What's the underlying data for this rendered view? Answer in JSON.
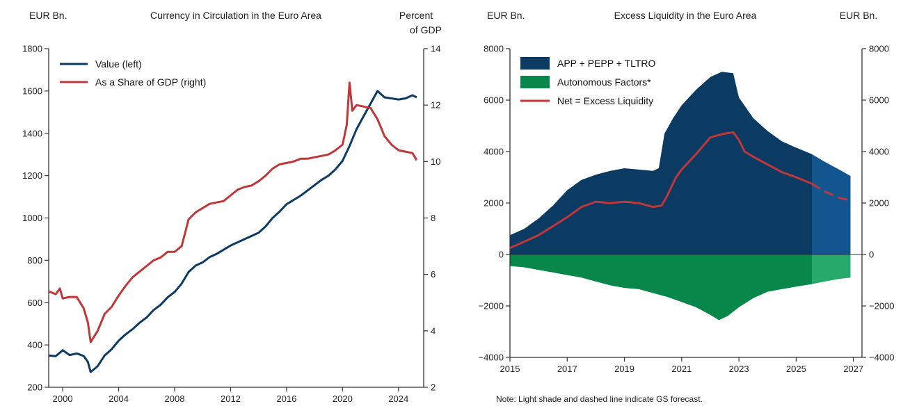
{
  "colors": {
    "navy": "#0b3a63",
    "red": "#c0373a",
    "green": "#07874a",
    "navy_forecast": "#13568f",
    "green_forecast": "#26a96b",
    "axis": "#333333"
  },
  "chart_data": [
    {
      "type": "line",
      "title": "Currency in Circulation in the Euro Area",
      "ylabel_left": "EUR Bn.",
      "ylabel_right_line1": "Percent",
      "ylabel_right_line2": "of GDP",
      "xlim": [
        1999,
        2025.8
      ],
      "ylim_left": [
        200,
        1800
      ],
      "ylim_right": [
        2,
        14
      ],
      "x_ticks": [
        2000,
        2004,
        2008,
        2012,
        2016,
        2020,
        2024
      ],
      "x_tick_labels": [
        "2000",
        "2004",
        "2008",
        "2012",
        "2016",
        "2020",
        "2024"
      ],
      "y_left_ticks": [
        200,
        400,
        600,
        800,
        1000,
        1200,
        1400,
        1600,
        1800
      ],
      "y_left_tick_labels": [
        "200",
        "400",
        "600",
        "800",
        "1000",
        "1200",
        "1400",
        "1600",
        "1800"
      ],
      "y_right_ticks": [
        2,
        4,
        6,
        8,
        10,
        12,
        14
      ],
      "y_right_tick_labels": [
        "2",
        "4",
        "6",
        "8",
        "10",
        "12",
        "14"
      ],
      "legend_position": "top-left",
      "series": [
        {
          "name": "Value (left)",
          "axis": "left",
          "color": "#0b3a63",
          "points": [
            [
              1999.0,
              350
            ],
            [
              1999.5,
              347
            ],
            [
              2000.0,
              375
            ],
            [
              2000.5,
              352
            ],
            [
              2001.0,
              360
            ],
            [
              2001.5,
              348
            ],
            [
              2001.8,
              320
            ],
            [
              2002.0,
              272
            ],
            [
              2002.5,
              300
            ],
            [
              2003.0,
              350
            ],
            [
              2003.5,
              380
            ],
            [
              2004.0,
              420
            ],
            [
              2004.5,
              450
            ],
            [
              2005.0,
              475
            ],
            [
              2005.5,
              505
            ],
            [
              2006.0,
              530
            ],
            [
              2006.5,
              565
            ],
            [
              2007.0,
              590
            ],
            [
              2007.5,
              625
            ],
            [
              2008.0,
              650
            ],
            [
              2008.5,
              690
            ],
            [
              2009.0,
              745
            ],
            [
              2009.5,
              775
            ],
            [
              2010.0,
              790
            ],
            [
              2010.5,
              815
            ],
            [
              2011.0,
              830
            ],
            [
              2011.5,
              850
            ],
            [
              2012.0,
              870
            ],
            [
              2012.5,
              885
            ],
            [
              2013.0,
              900
            ],
            [
              2013.5,
              915
            ],
            [
              2014.0,
              930
            ],
            [
              2014.5,
              960
            ],
            [
              2015.0,
              1000
            ],
            [
              2015.5,
              1030
            ],
            [
              2016.0,
              1065
            ],
            [
              2016.5,
              1085
            ],
            [
              2017.0,
              1105
            ],
            [
              2017.5,
              1130
            ],
            [
              2018.0,
              1155
            ],
            [
              2018.5,
              1180
            ],
            [
              2019.0,
              1200
            ],
            [
              2019.5,
              1230
            ],
            [
              2020.0,
              1270
            ],
            [
              2020.5,
              1340
            ],
            [
              2021.0,
              1420
            ],
            [
              2021.5,
              1480
            ],
            [
              2022.0,
              1540
            ],
            [
              2022.5,
              1600
            ],
            [
              2023.0,
              1570
            ],
            [
              2023.5,
              1565
            ],
            [
              2024.0,
              1560
            ],
            [
              2024.5,
              1565
            ],
            [
              2025.0,
              1580
            ],
            [
              2025.3,
              1570
            ]
          ]
        },
        {
          "name": "As a Share of GDP (right)",
          "axis": "right",
          "color": "#c0373a",
          "points": [
            [
              1999.0,
              5.4
            ],
            [
              1999.5,
              5.3
            ],
            [
              1999.8,
              5.5
            ],
            [
              2000.0,
              5.15
            ],
            [
              2000.5,
              5.2
            ],
            [
              2001.0,
              5.2
            ],
            [
              2001.5,
              4.8
            ],
            [
              2001.8,
              4.3
            ],
            [
              2002.0,
              3.6
            ],
            [
              2002.5,
              4.0
            ],
            [
              2003.0,
              4.6
            ],
            [
              2003.5,
              4.85
            ],
            [
              2004.0,
              5.25
            ],
            [
              2004.5,
              5.6
            ],
            [
              2005.0,
              5.9
            ],
            [
              2005.5,
              6.1
            ],
            [
              2006.0,
              6.3
            ],
            [
              2006.5,
              6.5
            ],
            [
              2007.0,
              6.6
            ],
            [
              2007.5,
              6.8
            ],
            [
              2008.0,
              6.8
            ],
            [
              2008.5,
              7.0
            ],
            [
              2009.0,
              7.95
            ],
            [
              2009.5,
              8.2
            ],
            [
              2010.0,
              8.35
            ],
            [
              2010.5,
              8.5
            ],
            [
              2011.0,
              8.55
            ],
            [
              2011.5,
              8.6
            ],
            [
              2012.0,
              8.8
            ],
            [
              2012.5,
              9.0
            ],
            [
              2013.0,
              9.1
            ],
            [
              2013.5,
              9.15
            ],
            [
              2014.0,
              9.3
            ],
            [
              2014.5,
              9.5
            ],
            [
              2015.0,
              9.75
            ],
            [
              2015.5,
              9.9
            ],
            [
              2016.0,
              9.95
            ],
            [
              2016.5,
              10.0
            ],
            [
              2017.0,
              10.1
            ],
            [
              2017.5,
              10.1
            ],
            [
              2018.0,
              10.15
            ],
            [
              2018.5,
              10.2
            ],
            [
              2019.0,
              10.25
            ],
            [
              2019.5,
              10.4
            ],
            [
              2020.0,
              10.6
            ],
            [
              2020.3,
              11.3
            ],
            [
              2020.5,
              12.8
            ],
            [
              2020.7,
              11.8
            ],
            [
              2021.0,
              12.0
            ],
            [
              2021.5,
              11.95
            ],
            [
              2022.0,
              11.9
            ],
            [
              2022.5,
              11.5
            ],
            [
              2023.0,
              10.9
            ],
            [
              2023.5,
              10.6
            ],
            [
              2024.0,
              10.4
            ],
            [
              2024.5,
              10.35
            ],
            [
              2025.0,
              10.3
            ],
            [
              2025.3,
              10.05
            ]
          ]
        }
      ]
    },
    {
      "type": "area",
      "title": "Excess Liquidity in the Euro Area",
      "ylabel_left": "EUR Bn.",
      "ylabel_right": "EUR Bn.",
      "xlim": [
        2015,
        2027.3
      ],
      "ylim": [
        -4000,
        8000
      ],
      "x_ticks": [
        2015,
        2017,
        2019,
        2021,
        2023,
        2025,
        2027
      ],
      "x_tick_labels": [
        "2015",
        "2017",
        "2019",
        "2021",
        "2023",
        "2025",
        "2027"
      ],
      "y_ticks": [
        -4000,
        -2000,
        0,
        2000,
        4000,
        6000,
        8000
      ],
      "y_tick_labels": [
        "−4000",
        "−2000",
        "0",
        "2000",
        "4000",
        "6000",
        "8000"
      ],
      "legend_position": "top-left",
      "forecast_start": 2025.55,
      "note": "Note: Light shade and dashed line indicate GS forecast.",
      "series": [
        {
          "name": "APP + PEPP + TLTRO",
          "kind": "area",
          "color": "#0b3a63",
          "forecast_color": "#13568f",
          "points": [
            [
              2015.0,
              750
            ],
            [
              2015.5,
              1000
            ],
            [
              2016.0,
              1400
            ],
            [
              2016.5,
              1900
            ],
            [
              2017.0,
              2500
            ],
            [
              2017.5,
              2900
            ],
            [
              2018.0,
              3100
            ],
            [
              2018.5,
              3250
            ],
            [
              2019.0,
              3350
            ],
            [
              2019.5,
              3300
            ],
            [
              2020.0,
              3250
            ],
            [
              2020.2,
              3350
            ],
            [
              2020.4,
              4700
            ],
            [
              2020.7,
              5300
            ],
            [
              2021.0,
              5800
            ],
            [
              2021.5,
              6400
            ],
            [
              2022.0,
              6900
            ],
            [
              2022.4,
              7100
            ],
            [
              2022.8,
              7050
            ],
            [
              2023.0,
              6100
            ],
            [
              2023.5,
              5300
            ],
            [
              2024.0,
              4800
            ],
            [
              2024.5,
              4400
            ],
            [
              2025.0,
              4150
            ],
            [
              2025.55,
              3900
            ],
            [
              2026.0,
              3600
            ],
            [
              2026.5,
              3300
            ],
            [
              2026.9,
              3050
            ]
          ]
        },
        {
          "name": "Autonomous Factors*",
          "kind": "area",
          "color": "#07874a",
          "forecast_color": "#26a96b",
          "points": [
            [
              2015.0,
              -450
            ],
            [
              2015.5,
              -500
            ],
            [
              2016.0,
              -600
            ],
            [
              2016.5,
              -700
            ],
            [
              2017.0,
              -800
            ],
            [
              2017.5,
              -900
            ],
            [
              2018.0,
              -1050
            ],
            [
              2018.5,
              -1200
            ],
            [
              2019.0,
              -1300
            ],
            [
              2019.5,
              -1350
            ],
            [
              2020.0,
              -1500
            ],
            [
              2020.5,
              -1650
            ],
            [
              2021.0,
              -1850
            ],
            [
              2021.5,
              -2050
            ],
            [
              2022.0,
              -2350
            ],
            [
              2022.3,
              -2550
            ],
            [
              2022.6,
              -2400
            ],
            [
              2023.0,
              -2050
            ],
            [
              2023.5,
              -1700
            ],
            [
              2024.0,
              -1450
            ],
            [
              2024.5,
              -1350
            ],
            [
              2025.0,
              -1250
            ],
            [
              2025.55,
              -1150
            ],
            [
              2026.0,
              -1050
            ],
            [
              2026.5,
              -950
            ],
            [
              2026.9,
              -900
            ]
          ]
        },
        {
          "name": "Net = Excess Liquidity",
          "kind": "line",
          "color": "#c0373a",
          "points": [
            [
              2015.0,
              250
            ],
            [
              2015.5,
              500
            ],
            [
              2016.0,
              750
            ],
            [
              2016.5,
              1100
            ],
            [
              2017.0,
              1450
            ],
            [
              2017.5,
              1850
            ],
            [
              2018.0,
              2050
            ],
            [
              2018.5,
              2000
            ],
            [
              2019.0,
              2050
            ],
            [
              2019.5,
              2000
            ],
            [
              2020.0,
              1850
            ],
            [
              2020.3,
              1900
            ],
            [
              2020.5,
              2300
            ],
            [
              2020.8,
              3000
            ],
            [
              2021.0,
              3300
            ],
            [
              2021.5,
              3900
            ],
            [
              2022.0,
              4550
            ],
            [
              2022.5,
              4700
            ],
            [
              2022.8,
              4750
            ],
            [
              2023.0,
              4450
            ],
            [
              2023.2,
              4000
            ],
            [
              2023.5,
              3800
            ],
            [
              2024.0,
              3500
            ],
            [
              2024.5,
              3200
            ],
            [
              2025.0,
              3000
            ],
            [
              2025.55,
              2750
            ]
          ],
          "forecast_points": [
            [
              2025.55,
              2750
            ],
            [
              2026.0,
              2450
            ],
            [
              2026.5,
              2200
            ],
            [
              2026.9,
              2100
            ]
          ]
        }
      ]
    }
  ]
}
